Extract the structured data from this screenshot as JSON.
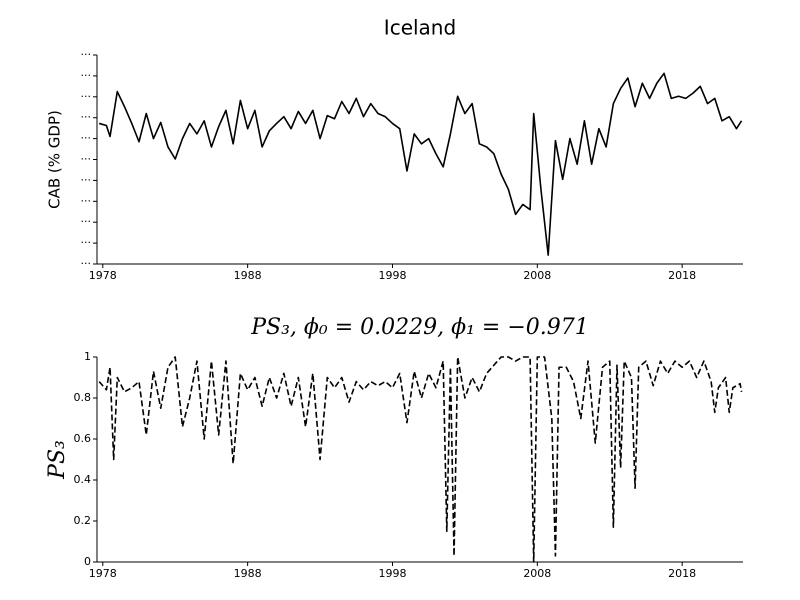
{
  "chart_data": [
    {
      "type": "line",
      "title": "Iceland",
      "ylabel": "CAB (% GDP)",
      "color": "#000000",
      "line_style": "solid",
      "xlim": [
        1977.6,
        2022.2
      ],
      "xticks": [
        1978,
        1988,
        1998,
        2008,
        2018
      ],
      "ylim": [
        -30,
        10
      ],
      "yticks": [
        {
          "value": -30,
          "label": "..."
        },
        {
          "value": -26,
          "label": "..."
        },
        {
          "value": -22,
          "label": "..."
        },
        {
          "value": -18,
          "label": "..."
        },
        {
          "value": -14,
          "label": "..."
        },
        {
          "value": -10,
          "label": "..."
        },
        {
          "value": -6,
          "label": "..."
        },
        {
          "value": -2,
          "label": "..."
        },
        {
          "value": 2,
          "label": "..."
        },
        {
          "value": 6,
          "label": "..."
        },
        {
          "value": 10,
          "label": "..."
        }
      ],
      "x": [
        1977.75,
        1978.25,
        1978.5,
        1979.0,
        1979.5,
        1980.0,
        1980.5,
        1981.0,
        1981.5,
        1982.0,
        1982.5,
        1983.0,
        1983.5,
        1984.0,
        1984.5,
        1985.0,
        1985.5,
        1986.0,
        1986.5,
        1987.0,
        1987.5,
        1988.0,
        1988.5,
        1989.0,
        1989.5,
        1990.0,
        1990.5,
        1991.0,
        1991.5,
        1992.0,
        1992.5,
        1993.0,
        1993.5,
        1994.0,
        1994.5,
        1995.0,
        1995.5,
        1996.0,
        1996.5,
        1997.0,
        1997.5,
        1998.0,
        1998.5,
        1999.0,
        1999.5,
        2000.0,
        2000.5,
        2001.0,
        2001.5,
        2002.0,
        2002.5,
        2003.0,
        2003.5,
        2004.0,
        2004.5,
        2005.0,
        2005.5,
        2006.0,
        2006.5,
        2007.0,
        2007.5,
        2007.75,
        2008.25,
        2008.75,
        2009.25,
        2009.75,
        2010.25,
        2010.75,
        2011.25,
        2011.75,
        2012.25,
        2012.75,
        2013.25,
        2013.75,
        2014.25,
        2014.75,
        2015.25,
        2015.75,
        2016.25,
        2016.75,
        2017.25,
        2017.75,
        2018.25,
        2018.75,
        2019.25,
        2019.75,
        2020.25,
        2020.75,
        2021.25,
        2021.75,
        2022.1
      ],
      "values": [
        -3.1,
        -3.5,
        -5.6,
        3.0,
        0.1,
        -3.1,
        -6.6,
        -1.2,
        -6.0,
        -2.9,
        -7.6,
        -9.9,
        -6.0,
        -3.1,
        -5.1,
        -2.6,
        -7.6,
        -3.7,
        -0.6,
        -7.0,
        1.3,
        -4.1,
        -0.6,
        -7.6,
        -4.5,
        -3.1,
        -1.8,
        -4.1,
        -0.8,
        -3.1,
        -0.6,
        -6.0,
        -1.6,
        -2.2,
        1.1,
        -1.2,
        1.7,
        -1.8,
        0.7,
        -1.2,
        -1.8,
        -3.1,
        -4.1,
        -12.2,
        -5.1,
        -7.0,
        -6.0,
        -8.9,
        -11.4,
        -5.1,
        2.1,
        -1.2,
        0.7,
        -7.0,
        -7.6,
        -8.9,
        -12.8,
        -15.7,
        -20.5,
        -18.6,
        -19.6,
        -1.2,
        -15.7,
        -28.3,
        -6.4,
        -13.8,
        -6.0,
        -10.9,
        -2.6,
        -10.9,
        -4.1,
        -7.6,
        0.7,
        3.6,
        5.6,
        0.1,
        4.6,
        1.7,
        4.6,
        6.5,
        1.7,
        2.1,
        1.7,
        2.7,
        4.0,
        0.7,
        1.7,
        -2.6,
        -1.8,
        -4.1,
        -2.6
      ]
    },
    {
      "type": "line",
      "title": "PS₃, ϕ₀ = 0.0229, ϕ₁ = −0.971",
      "ylabel": "PS₃",
      "color": "#000000",
      "line_style": "dashed",
      "xlim": [
        1977.6,
        2022.2
      ],
      "xticks": [
        1978,
        1988,
        1998,
        2008,
        2018
      ],
      "ylim": [
        0,
        1
      ],
      "yticks": [
        0,
        0.2,
        0.4,
        0.6,
        0.8,
        1
      ],
      "x": [
        1977.75,
        1978.25,
        1978.5,
        1978.75,
        1979.0,
        1979.5,
        1980.0,
        1980.5,
        1981.0,
        1981.5,
        1982.0,
        1982.5,
        1983.0,
        1983.5,
        1984.0,
        1984.5,
        1985.0,
        1985.5,
        1986.0,
        1986.5,
        1987.0,
        1987.5,
        1988.0,
        1988.5,
        1989.0,
        1989.5,
        1990.0,
        1990.5,
        1991.0,
        1991.5,
        1992.0,
        1992.5,
        1993.0,
        1993.5,
        1994.0,
        1994.5,
        1995.0,
        1995.5,
        1996.0,
        1996.5,
        1997.0,
        1997.5,
        1998.0,
        1998.5,
        1999.0,
        1999.5,
        2000.0,
        2000.5,
        2001.0,
        2001.5,
        2001.75,
        2002.0,
        2002.25,
        2002.5,
        2003.0,
        2003.5,
        2004.0,
        2004.5,
        2005.0,
        2005.5,
        2006.0,
        2006.5,
        2007.0,
        2007.5,
        2007.75,
        2008.0,
        2008.5,
        2009.0,
        2009.25,
        2009.5,
        2010.0,
        2010.5,
        2011.0,
        2011.5,
        2012.0,
        2012.5,
        2013.0,
        2013.25,
        2013.5,
        2013.75,
        2014.0,
        2014.5,
        2014.75,
        2015.0,
        2015.5,
        2016.0,
        2016.5,
        2017.0,
        2017.5,
        2018.0,
        2018.5,
        2019.0,
        2019.5,
        2020.0,
        2020.25,
        2020.5,
        2021.0,
        2021.25,
        2021.5,
        2022.0,
        2022.1
      ],
      "values": [
        0.88,
        0.84,
        0.95,
        0.5,
        0.9,
        0.83,
        0.85,
        0.88,
        0.62,
        0.93,
        0.75,
        0.95,
        1.0,
        0.66,
        0.8,
        0.98,
        0.6,
        0.98,
        0.62,
        0.98,
        0.48,
        0.92,
        0.84,
        0.9,
        0.76,
        0.9,
        0.8,
        0.92,
        0.76,
        0.9,
        0.66,
        0.92,
        0.5,
        0.9,
        0.85,
        0.9,
        0.78,
        0.88,
        0.84,
        0.88,
        0.86,
        0.88,
        0.85,
        0.92,
        0.68,
        0.93,
        0.8,
        0.92,
        0.85,
        0.98,
        0.15,
        0.95,
        0.03,
        1.0,
        0.8,
        0.9,
        0.83,
        0.92,
        0.96,
        1.0,
        1.0,
        0.98,
        1.0,
        1.0,
        0.0,
        1.0,
        1.0,
        0.7,
        0.03,
        0.95,
        0.95,
        0.88,
        0.7,
        0.98,
        0.58,
        0.95,
        0.98,
        0.17,
        0.96,
        0.46,
        0.98,
        0.9,
        0.36,
        0.95,
        0.98,
        0.86,
        0.98,
        0.92,
        0.98,
        0.95,
        0.98,
        0.9,
        0.98,
        0.88,
        0.73,
        0.85,
        0.9,
        0.73,
        0.85,
        0.87,
        0.83
      ]
    }
  ]
}
